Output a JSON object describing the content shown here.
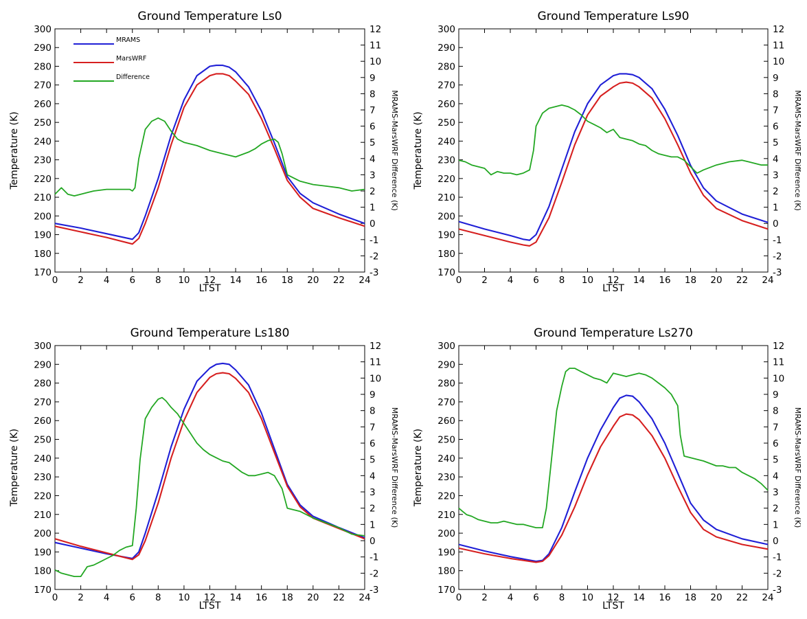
{
  "figure": {
    "colors": {
      "MRAMS": "#1f1fd6",
      "MarsWRF": "#d61f1f",
      "Difference": "#22a722",
      "frame": "#000000"
    },
    "legend": [
      "MRAMS",
      "MarsWRF",
      "Difference"
    ]
  },
  "chart_data": [
    {
      "type": "line",
      "title": "Ground Temperature Ls0",
      "xlabel": "LTST",
      "ylabel": "Temperature (K)",
      "y2label": "MRAMS-MarsWRF Difference (K)",
      "xlim": [
        0,
        24
      ],
      "ylim": [
        170,
        300
      ],
      "y2lim": [
        -3,
        12
      ],
      "xticks": [
        0,
        2,
        4,
        6,
        8,
        10,
        12,
        14,
        16,
        18,
        20,
        22,
        24
      ],
      "yticks": [
        170,
        180,
        190,
        200,
        210,
        220,
        230,
        240,
        250,
        260,
        270,
        280,
        290,
        300
      ],
      "y2ticks": [
        -3,
        -2,
        -1,
        0,
        1,
        2,
        3,
        4,
        5,
        6,
        7,
        8,
        9,
        10,
        11,
        12
      ],
      "legend_position": "top-left",
      "series": [
        {
          "name": "MRAMS",
          "axis": "left",
          "x": [
            0,
            2,
            4,
            6,
            6.5,
            7,
            8,
            9,
            10,
            11,
            12,
            12.5,
            13,
            13.5,
            14,
            15,
            16,
            17,
            18,
            19,
            20,
            22,
            24
          ],
          "y": [
            196,
            193.5,
            190.5,
            187.5,
            191,
            200,
            220,
            243,
            262,
            275,
            280,
            280.5,
            280.5,
            279.5,
            277,
            269,
            256,
            239,
            221,
            212,
            207,
            201,
            196
          ]
        },
        {
          "name": "MarsWRF",
          "axis": "left",
          "x": [
            0,
            2,
            4,
            6,
            6.5,
            7,
            8,
            9,
            10,
            11,
            12,
            12.5,
            13,
            13.5,
            14,
            15,
            16,
            17,
            18,
            19,
            20,
            22,
            24
          ],
          "y": [
            194.5,
            191.5,
            188.5,
            185,
            188,
            196,
            215,
            238,
            258,
            270,
            275,
            276,
            276,
            275,
            272,
            265,
            252,
            236,
            219,
            210,
            204,
            199,
            194.5
          ]
        },
        {
          "name": "Difference",
          "axis": "right",
          "x": [
            0,
            0.5,
            1,
            1.5,
            2,
            3,
            4,
            5,
            5.8,
            6,
            6.2,
            6.5,
            7,
            7.5,
            8,
            8.5,
            9,
            9.5,
            10,
            11,
            12,
            13,
            14,
            15,
            15.5,
            16,
            16.5,
            17,
            17.3,
            17.6,
            18,
            19,
            20,
            21,
            22,
            23,
            24
          ],
          "y": [
            1.8,
            2.2,
            1.8,
            1.7,
            1.8,
            2,
            2.1,
            2.1,
            2.1,
            2,
            2.2,
            4,
            5.8,
            6.3,
            6.5,
            6.3,
            5.7,
            5.2,
            5,
            4.8,
            4.5,
            4.3,
            4.1,
            4.4,
            4.6,
            4.9,
            5.1,
            5.2,
            5,
            4.3,
            3,
            2.6,
            2.4,
            2.3,
            2.2,
            2,
            2.1
          ]
        }
      ]
    },
    {
      "type": "line",
      "title": "Ground Temperature Ls90",
      "xlabel": "LTST",
      "ylabel": "Temperature (K)",
      "y2label": "MRAMS-MarsWRF Difference (K)",
      "xlim": [
        0,
        24
      ],
      "ylim": [
        170,
        300
      ],
      "y2lim": [
        -3,
        12
      ],
      "xticks": [
        0,
        2,
        4,
        6,
        8,
        10,
        12,
        14,
        16,
        18,
        20,
        22,
        24
      ],
      "yticks": [
        170,
        180,
        190,
        200,
        210,
        220,
        230,
        240,
        250,
        260,
        270,
        280,
        290,
        300
      ],
      "y2ticks": [
        -3,
        -2,
        -1,
        0,
        1,
        2,
        3,
        4,
        5,
        6,
        7,
        8,
        9,
        10,
        11,
        12
      ],
      "series": [
        {
          "name": "MRAMS",
          "axis": "left",
          "x": [
            0,
            2,
            4,
            5,
            5.5,
            6,
            7,
            8,
            9,
            10,
            11,
            12,
            12.5,
            13,
            13.5,
            14,
            15,
            16,
            17,
            18,
            19,
            20,
            22,
            24
          ],
          "y": [
            197,
            193,
            189.5,
            187.5,
            187,
            190,
            205,
            225,
            245,
            260,
            270,
            275,
            276,
            276,
            275.5,
            274,
            268,
            257,
            243,
            227,
            215,
            208,
            201,
            196.5
          ]
        },
        {
          "name": "MarsWRF",
          "axis": "left",
          "x": [
            0,
            2,
            4,
            5,
            5.5,
            6,
            7,
            8,
            9,
            10,
            11,
            12,
            12.5,
            13,
            13.5,
            14,
            15,
            16,
            17,
            18,
            19,
            20,
            22,
            24
          ],
          "y": [
            193,
            189.5,
            186,
            184.5,
            184,
            186,
            199,
            218,
            238,
            254,
            264,
            269,
            271,
            271.5,
            271,
            269,
            263,
            252,
            238,
            223,
            211,
            204,
            197.5,
            193
          ]
        },
        {
          "name": "Difference",
          "axis": "right",
          "x": [
            0,
            0.5,
            1,
            1.5,
            2,
            2.5,
            3,
            3.5,
            4,
            4.5,
            5,
            5.5,
            5.8,
            6,
            6.5,
            7,
            7.5,
            8,
            8.5,
            9,
            9.5,
            10,
            10.5,
            11,
            11.5,
            12,
            12.5,
            13,
            13.5,
            14,
            14.5,
            15,
            15.5,
            16,
            16.5,
            17,
            17.5,
            18,
            18.5,
            19,
            20,
            21,
            22,
            22.5,
            23,
            23.5,
            24
          ],
          "y": [
            3.9,
            3.8,
            3.6,
            3.5,
            3.4,
            3,
            3.2,
            3.1,
            3.1,
            3,
            3.1,
            3.3,
            4.5,
            6,
            6.8,
            7.1,
            7.2,
            7.3,
            7.2,
            7,
            6.7,
            6.3,
            6.1,
            5.9,
            5.6,
            5.8,
            5.3,
            5.2,
            5.1,
            4.9,
            4.8,
            4.5,
            4.3,
            4.2,
            4.1,
            4.1,
            3.9,
            3.5,
            3.1,
            3.3,
            3.6,
            3.8,
            3.9,
            3.8,
            3.7,
            3.6,
            3.6
          ]
        }
      ]
    },
    {
      "type": "line",
      "title": "Ground Temperature Ls180",
      "xlabel": "LTST",
      "ylabel": "Temperature (K)",
      "y2label": "MRAMS-MarsWRF Difference (K)",
      "xlim": [
        0,
        24
      ],
      "ylim": [
        170,
        300
      ],
      "y2lim": [
        -3,
        12
      ],
      "xticks": [
        0,
        2,
        4,
        6,
        8,
        10,
        12,
        14,
        16,
        18,
        20,
        22,
        24
      ],
      "yticks": [
        170,
        180,
        190,
        200,
        210,
        220,
        230,
        240,
        250,
        260,
        270,
        280,
        290,
        300
      ],
      "y2ticks": [
        -3,
        -2,
        -1,
        0,
        1,
        2,
        3,
        4,
        5,
        6,
        7,
        8,
        9,
        10,
        11,
        12
      ],
      "series": [
        {
          "name": "MRAMS",
          "axis": "left",
          "x": [
            0,
            2,
            4,
            6,
            6.5,
            7,
            8,
            9,
            10,
            11,
            12,
            12.5,
            13,
            13.5,
            14,
            15,
            16,
            17,
            18,
            19,
            20,
            22,
            24
          ],
          "y": [
            195,
            192,
            189,
            186.5,
            190,
            200,
            222,
            246,
            266,
            281,
            288,
            290,
            290.5,
            290,
            287,
            279,
            264,
            245,
            226,
            215,
            209,
            203,
            197.5
          ]
        },
        {
          "name": "MarsWRF",
          "axis": "left",
          "x": [
            0,
            2,
            4,
            6,
            6.5,
            7,
            8,
            9,
            10,
            11,
            12,
            12.5,
            13,
            13.5,
            14,
            15,
            16,
            17,
            18,
            19,
            20,
            22,
            24
          ],
          "y": [
            197,
            193,
            189.5,
            186,
            188.5,
            196,
            216,
            240,
            260,
            275,
            283,
            285,
            285.5,
            285,
            282.5,
            275,
            261,
            243,
            225,
            214,
            208,
            202.5,
            197
          ]
        },
        {
          "name": "Difference",
          "axis": "right",
          "x": [
            0,
            0.5,
            1,
            1.5,
            2,
            2.5,
            3,
            3.5,
            4,
            4.5,
            5,
            5.5,
            6,
            6.3,
            6.6,
            7,
            7.5,
            8,
            8.3,
            8.6,
            9,
            9.5,
            10,
            10.5,
            11,
            11.5,
            12,
            12.5,
            13,
            13.5,
            14,
            14.5,
            15,
            15.5,
            16,
            16.5,
            17,
            17.3,
            17.6,
            18,
            19,
            20,
            21,
            22,
            23,
            24
          ],
          "y": [
            -1.8,
            -2,
            -2.1,
            -2.2,
            -2.2,
            -1.6,
            -1.5,
            -1.3,
            -1.1,
            -0.9,
            -0.6,
            -0.4,
            -0.3,
            2,
            5,
            7.5,
            8.2,
            8.7,
            8.8,
            8.6,
            8.2,
            7.8,
            7.2,
            6.6,
            6,
            5.6,
            5.3,
            5.1,
            4.9,
            4.8,
            4.5,
            4.2,
            4,
            4,
            4.1,
            4.2,
            4,
            3.6,
            3.2,
            2,
            1.8,
            1.4,
            1.1,
            0.8,
            0.4,
            0.3
          ]
        }
      ]
    },
    {
      "type": "line",
      "title": "Ground Temperature Ls270",
      "xlabel": "LTST",
      "ylabel": "Temperature (K)",
      "y2label": "MRAMS-MarsWRF Difference (K)",
      "xlim": [
        0,
        24
      ],
      "ylim": [
        170,
        300
      ],
      "y2lim": [
        -3,
        12
      ],
      "xticks": [
        0,
        2,
        4,
        6,
        8,
        10,
        12,
        14,
        16,
        18,
        20,
        22,
        24
      ],
      "yticks": [
        170,
        180,
        190,
        200,
        210,
        220,
        230,
        240,
        250,
        260,
        270,
        280,
        290,
        300
      ],
      "y2ticks": [
        -3,
        -2,
        -1,
        0,
        1,
        2,
        3,
        4,
        5,
        6,
        7,
        8,
        9,
        10,
        11,
        12
      ],
      "series": [
        {
          "name": "MRAMS",
          "axis": "left",
          "x": [
            0,
            2,
            4,
            6,
            6.5,
            7,
            8,
            9,
            10,
            11,
            12,
            12.5,
            13,
            13.5,
            14,
            15,
            16,
            17,
            18,
            19,
            20,
            22,
            24
          ],
          "y": [
            194,
            190.5,
            187.5,
            185,
            185.5,
            189,
            203,
            222,
            240,
            255,
            267,
            272,
            273.5,
            273,
            270,
            261,
            248,
            232,
            216,
            207,
            202,
            197,
            194
          ]
        },
        {
          "name": "MarsWRF",
          "axis": "left",
          "x": [
            0,
            2,
            4,
            6,
            6.5,
            7,
            8,
            9,
            10,
            11,
            12,
            12.5,
            13,
            13.5,
            14,
            15,
            16,
            17,
            18,
            19,
            20,
            22,
            24
          ],
          "y": [
            192,
            189,
            186.5,
            184.5,
            185,
            188,
            199,
            214,
            231,
            246,
            257,
            262,
            263.5,
            263,
            260.5,
            252,
            240,
            225,
            211,
            202,
            198,
            194,
            191.5
          ]
        },
        {
          "name": "Difference",
          "axis": "right",
          "x": [
            0,
            0.3,
            0.6,
            1,
            1.5,
            2,
            2.5,
            3,
            3.5,
            4,
            4.5,
            5,
            5.5,
            6,
            6.5,
            6.8,
            7.2,
            7.6,
            8,
            8.3,
            8.6,
            9,
            9.5,
            10,
            10.5,
            11,
            11.5,
            12,
            12.5,
            13,
            13.5,
            14,
            14.5,
            15,
            15.5,
            16,
            16.5,
            17,
            17.2,
            17.5,
            18,
            19,
            20,
            20.5,
            21,
            21.5,
            22,
            22.5,
            23,
            23.5,
            24
          ],
          "y": [
            2,
            1.8,
            1.6,
            1.5,
            1.3,
            1.2,
            1.1,
            1.1,
            1.2,
            1.1,
            1,
            1,
            0.9,
            0.8,
            0.8,
            2,
            5,
            8,
            9.5,
            10.4,
            10.6,
            10.6,
            10.4,
            10.2,
            10,
            9.9,
            9.7,
            10.3,
            10.2,
            10.1,
            10.2,
            10.3,
            10.2,
            10,
            9.7,
            9.4,
            9,
            8.3,
            6.5,
            5.2,
            5.1,
            4.9,
            4.6,
            4.6,
            4.5,
            4.5,
            4.2,
            4,
            3.8,
            3.5,
            3.1
          ]
        }
      ]
    }
  ]
}
